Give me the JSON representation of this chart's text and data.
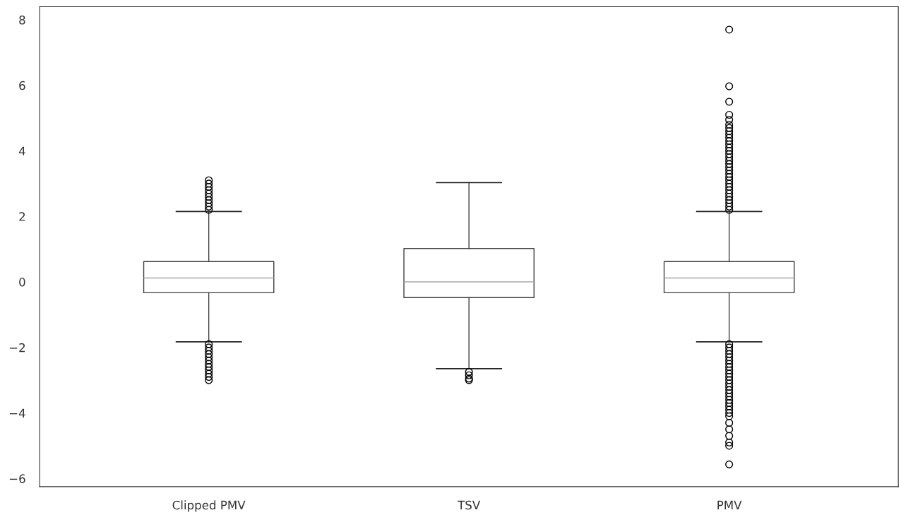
{
  "chart_data": {
    "type": "box",
    "categories": [
      "Clipped PMV",
      "TSV",
      "PMV"
    ],
    "boxes": [
      {
        "low": -1.83,
        "q1": -0.33,
        "median": 0.12,
        "q3": 0.62,
        "high": 2.15,
        "outliers": [
          2.2,
          2.3,
          2.4,
          2.5,
          2.6,
          2.7,
          2.8,
          2.9,
          3.0,
          3.1,
          -1.9,
          -2.0,
          -2.1,
          -2.2,
          -2.3,
          -2.4,
          -2.5,
          -2.6,
          -2.7,
          -2.8,
          -2.9,
          -3.0
        ]
      },
      {
        "low": -2.65,
        "q1": -0.48,
        "median": 0.0,
        "q3": 1.02,
        "high": 3.03,
        "outliers": [
          -2.75,
          -2.85,
          -2.95,
          -3.0
        ]
      },
      {
        "low": -1.83,
        "q1": -0.33,
        "median": 0.12,
        "q3": 0.62,
        "high": 2.15,
        "outliers": [
          2.2,
          2.3,
          2.4,
          2.5,
          2.6,
          2.7,
          2.8,
          2.9,
          3.0,
          3.1,
          3.2,
          3.3,
          3.4,
          3.5,
          3.6,
          3.7,
          3.8,
          3.9,
          4.0,
          4.1,
          4.2,
          4.3,
          4.4,
          4.5,
          4.6,
          4.7,
          4.8,
          4.95,
          5.1,
          5.5,
          5.97,
          7.7,
          -1.9,
          -2.0,
          -2.1,
          -2.2,
          -2.3,
          -2.4,
          -2.5,
          -2.6,
          -2.7,
          -2.8,
          -2.9,
          -3.0,
          -3.1,
          -3.2,
          -3.3,
          -3.4,
          -3.5,
          -3.6,
          -3.7,
          -3.8,
          -3.9,
          -4.0,
          -4.1,
          -4.3,
          -4.5,
          -4.7,
          -4.9,
          -5.0,
          -5.57
        ]
      }
    ],
    "color": "#3f3f3f",
    "ylim": [
      -6.25,
      8.4
    ],
    "yticks": [
      {
        "value": -6,
        "label": "−6"
      },
      {
        "value": -4,
        "label": "−4"
      },
      {
        "value": -2,
        "label": "−2"
      },
      0,
      2,
      4,
      6,
      8
    ],
    "grid": false,
    "marker": "circle"
  }
}
